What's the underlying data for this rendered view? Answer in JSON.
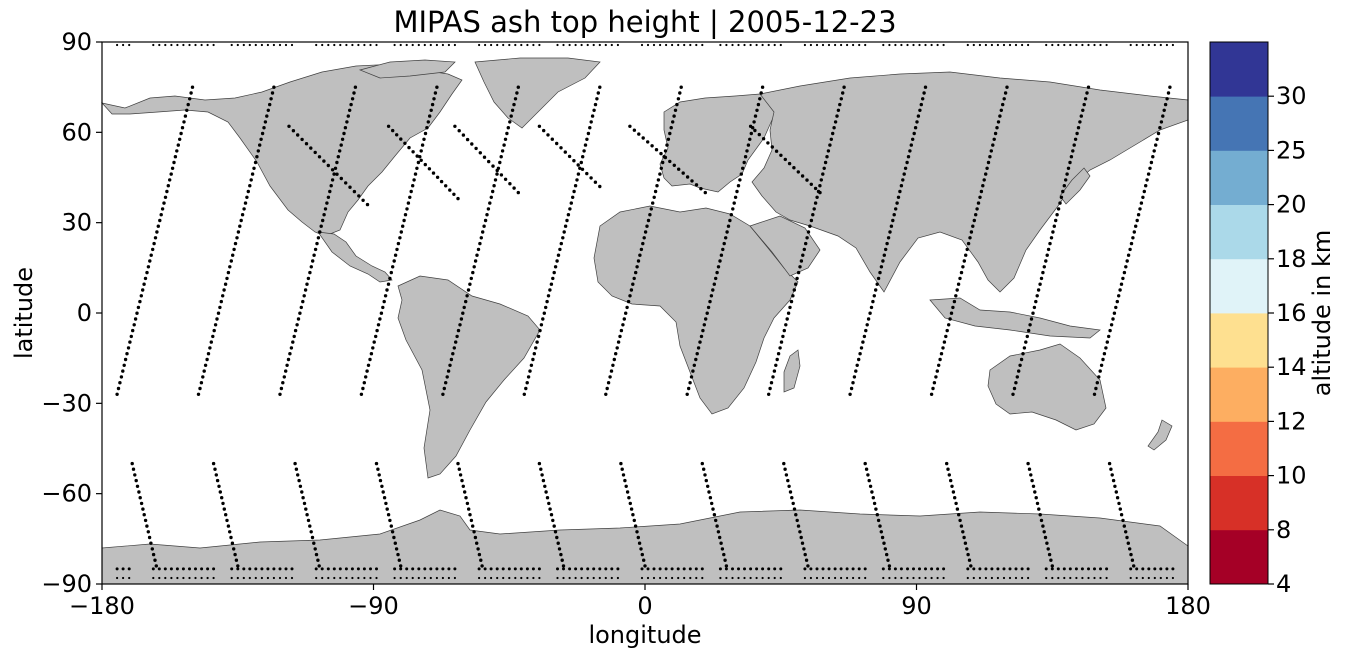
{
  "chart_data": {
    "type": "scatter",
    "title": "MIPAS ash top height | 2005-12-23",
    "xlabel": "longitude",
    "ylabel": "latitude",
    "xlim": [
      -180,
      180
    ],
    "ylim": [
      -90,
      90
    ],
    "xticks": [
      -180,
      -90,
      0,
      90,
      180
    ],
    "yticks": [
      -90,
      -60,
      -30,
      0,
      30,
      60,
      90
    ],
    "xtick_labels": [
      "−180",
      "−90",
      "0",
      "90",
      "180"
    ],
    "ytick_labels": [
      "−90",
      "−60",
      "−30",
      "0",
      "30",
      "60",
      "90"
    ],
    "basemap": "world land masses, gray fill",
    "marker_color": "#000000",
    "measurement_tracks": [
      {
        "lon": [
          -150,
          -175
        ],
        "lat": [
          75,
          -27
        ]
      },
      {
        "lon": [
          -123,
          -148
        ],
        "lat": [
          75,
          -27
        ]
      },
      {
        "lon": [
          -96,
          -121
        ],
        "lat": [
          75,
          -27
        ]
      },
      {
        "lon": [
          -69,
          -94
        ],
        "lat": [
          75,
          -27
        ]
      },
      {
        "lon": [
          -42,
          -67
        ],
        "lat": [
          75,
          -27
        ]
      },
      {
        "lon": [
          -15,
          -40
        ],
        "lat": [
          75,
          -27
        ]
      },
      {
        "lon": [
          12,
          -13
        ],
        "lat": [
          75,
          -27
        ]
      },
      {
        "lon": [
          39,
          14
        ],
        "lat": [
          75,
          -27
        ]
      },
      {
        "lon": [
          66,
          41
        ],
        "lat": [
          75,
          -27
        ]
      },
      {
        "lon": [
          93,
          68
        ],
        "lat": [
          75,
          -27
        ]
      },
      {
        "lon": [
          120,
          95
        ],
        "lat": [
          75,
          -27
        ]
      },
      {
        "lon": [
          147,
          122
        ],
        "lat": [
          75,
          -27
        ]
      },
      {
        "lon": [
          174,
          149
        ],
        "lat": [
          75,
          -27
        ]
      },
      {
        "lon": [
          -170,
          -162
        ],
        "lat": [
          -50,
          -84
        ]
      },
      {
        "lon": [
          -143,
          -135
        ],
        "lat": [
          -50,
          -84
        ]
      },
      {
        "lon": [
          -116,
          -108
        ],
        "lat": [
          -50,
          -84
        ]
      },
      {
        "lon": [
          -89,
          -81
        ],
        "lat": [
          -50,
          -84
        ]
      },
      {
        "lon": [
          -62,
          -54
        ],
        "lat": [
          -50,
          -84
        ]
      },
      {
        "lon": [
          -35,
          -27
        ],
        "lat": [
          -50,
          -84
        ]
      },
      {
        "lon": [
          -8,
          0
        ],
        "lat": [
          -50,
          -84
        ]
      },
      {
        "lon": [
          19,
          27
        ],
        "lat": [
          -50,
          -84
        ]
      },
      {
        "lon": [
          46,
          54
        ],
        "lat": [
          -50,
          -84
        ]
      },
      {
        "lon": [
          73,
          81
        ],
        "lat": [
          -50,
          -84
        ]
      },
      {
        "lon": [
          100,
          108
        ],
        "lat": [
          -50,
          -84
        ]
      },
      {
        "lon": [
          127,
          135
        ],
        "lat": [
          -50,
          -84
        ]
      },
      {
        "lon": [
          154,
          162
        ],
        "lat": [
          -50,
          -84
        ]
      },
      {
        "lon": [
          -118,
          -92
        ],
        "lat": [
          62,
          36
        ]
      },
      {
        "lon": [
          -85,
          -62
        ],
        "lat": [
          62,
          38
        ]
      },
      {
        "lon": [
          -63,
          -42
        ],
        "lat": [
          62,
          40
        ]
      },
      {
        "lon": [
          -35,
          -15
        ],
        "lat": [
          62,
          42
        ]
      },
      {
        "lon": [
          -5,
          20
        ],
        "lat": [
          62,
          40
        ]
      },
      {
        "lon": [
          35,
          58
        ],
        "lat": [
          62,
          40
        ]
      }
    ],
    "colorbar": {
      "label": "altitude in km",
      "bounds": [
        4,
        8,
        10,
        12,
        14,
        16,
        18,
        20,
        25,
        30
      ],
      "colors": [
        "#a50026",
        "#d73027",
        "#f46d43",
        "#fdae61",
        "#fee090",
        "#e0f3f8",
        "#abd9e9",
        "#74add1",
        "#4575b4",
        "#313695"
      ],
      "tick_labels": [
        "4",
        "8",
        "10",
        "12",
        "14",
        "16",
        "18",
        "20",
        "25",
        "30"
      ]
    }
  }
}
